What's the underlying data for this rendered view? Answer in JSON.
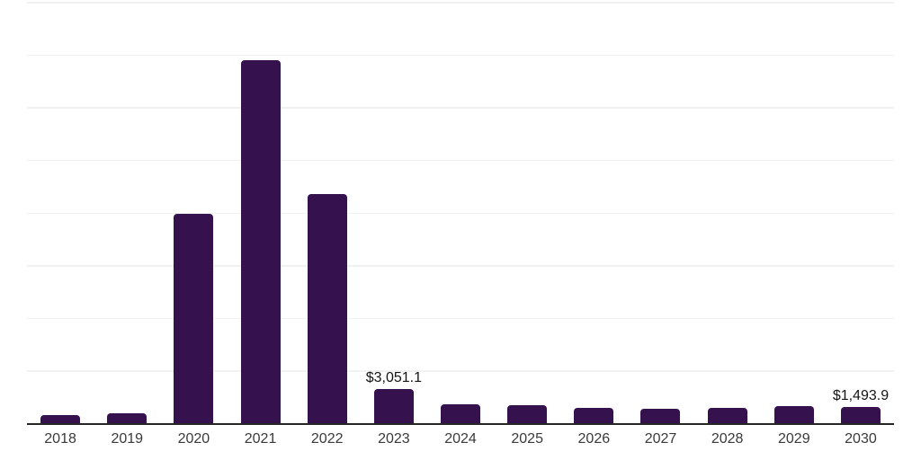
{
  "chart_data": {
    "type": "bar",
    "title": "",
    "xlabel": "",
    "ylabel": "",
    "legend": "none",
    "grid": "horizontal",
    "gridline_count": 8,
    "ylim": [
      0,
      38000
    ],
    "categories": [
      "2018",
      "2019",
      "2020",
      "2021",
      "2022",
      "2023",
      "2024",
      "2025",
      "2026",
      "2027",
      "2028",
      "2029",
      "2030"
    ],
    "values": [
      760,
      920,
      18900,
      32700,
      20700,
      3051.1,
      1730,
      1620,
      1410,
      1330,
      1410,
      1530,
      1493.9
    ],
    "data_labels": [
      "",
      "",
      "",
      "",
      "",
      "$3,051.1",
      "",
      "",
      "",
      "",
      "",
      "",
      "$1,493.9"
    ],
    "bar_color": "#35114e",
    "colors": {
      "background": "#ffffff",
      "gridline": "#f2f2f2",
      "axis_line": "#262626",
      "tick_label": "#3a3a3a",
      "data_label": "#141414"
    }
  }
}
